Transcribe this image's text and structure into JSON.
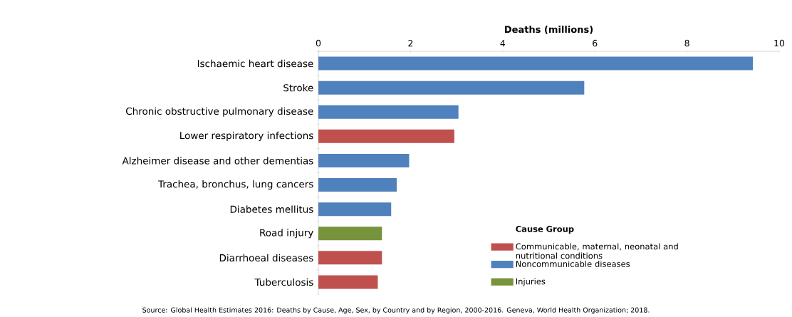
{
  "chart_data": {
    "type": "bar",
    "orientation": "horizontal",
    "xlabel": "Deaths (millions)",
    "categories": [
      "Ischaemic heart disease",
      "Stroke",
      "Chronic obstructive pulmonary disease",
      "Lower respiratory infections",
      "Alzheimer disease and other dementias",
      "Trachea, bronchus, lung cancers",
      "Diabetes mellitus",
      "Road injury",
      "Diarrhoeal diseases",
      "Tuberculosis"
    ],
    "series": [
      {
        "name": "Communicable, maternal, neonatal and nutritional conditions",
        "color": "#c0504d",
        "values": [
          null,
          null,
          null,
          2.95,
          null,
          null,
          null,
          null,
          1.38,
          1.29
        ]
      },
      {
        "name": "Noncommunicable diseases",
        "color": "#4f81bd",
        "values": [
          9.43,
          5.77,
          3.04,
          null,
          1.97,
          1.7,
          1.58,
          null,
          null,
          null
        ]
      },
      {
        "name": "Injuries",
        "color": "#77933c",
        "values": [
          null,
          null,
          null,
          null,
          null,
          null,
          null,
          1.38,
          null,
          null
        ]
      }
    ],
    "legend_title": "Cause Group",
    "legend": "bottom right",
    "xlim": [
      0,
      10
    ],
    "xticks": [
      0,
      2,
      4,
      6,
      8,
      10
    ],
    "annotations": [
      "Source: Global Health Estimates 2016: Deaths by Cause, Age, Sex, by Country and by Region, 2000-2016. Geneva, World Health Organization; 2018."
    ]
  }
}
